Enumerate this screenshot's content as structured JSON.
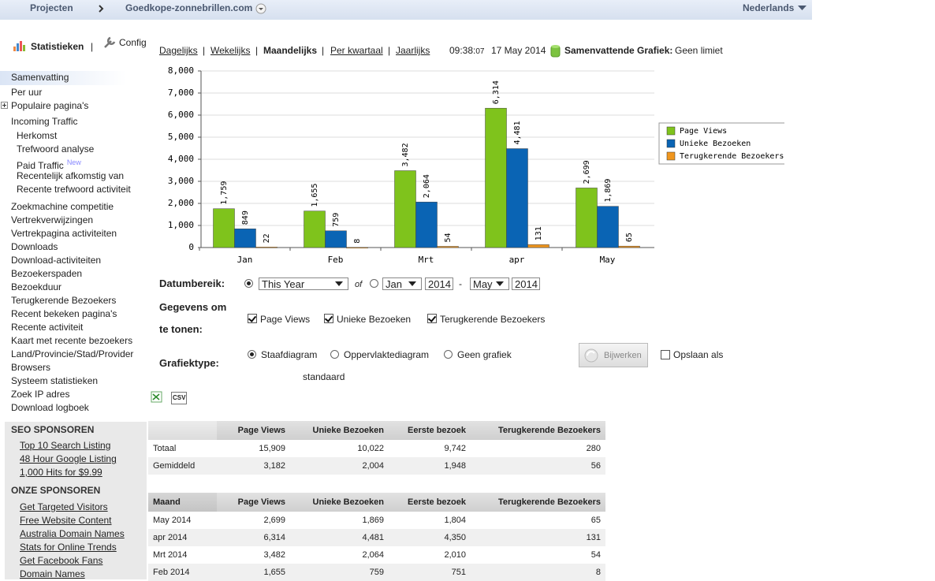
{
  "topbar": {
    "projects": "Projecten",
    "domain": "Goedkope-zonnebrillen.com",
    "language": "Nederlands"
  },
  "sidebar": {
    "title": "Statistieken",
    "separator": "|",
    "config": "Config",
    "nav": [
      "Samenvatting",
      "Per uur",
      "Populaire pagina's",
      "Incoming Traffic",
      "Herkomst",
      "Trefwoord analyse",
      "Paid Traffic",
      "Recentelijk afkomstig van",
      "Recente trefwoord activiteit",
      "Zoekmachine competitie",
      "Vertrekverwijzingen",
      "Vertrekpagina activiteiten",
      "Downloads",
      "Download-activiteiten",
      "Bezoekerspaden",
      "Bezoekduur",
      "Terugkerende Bezoekers",
      "Recent bekeken pagina's",
      "Recente activiteit",
      "Kaart met recente bezoekers",
      "Land/Provincie/Stad/Provider",
      "Browsers",
      "Systeem statistieken",
      "Zoek IP adres",
      "Download logboek"
    ],
    "new_badge": "New",
    "seo_title": "SEO SPONSOREN",
    "seo_links": [
      "Top 10 Search Listing",
      "48 Hour Google Listing",
      "1,000 Hits for $9.99"
    ],
    "our_title": "ONZE SPONSOREN",
    "our_links": [
      "Get Targeted Visitors",
      "Free Website Content",
      "Australia Domain Names",
      "Stats for Online Trends",
      "Get Facebook Fans",
      "Domain Names"
    ]
  },
  "periods": {
    "tabs": [
      "Dagelijks",
      "Wekelijks",
      "Maandelijks",
      "Per kwartaal",
      "Jaarlijks"
    ],
    "separator": "|",
    "time": "09:38:",
    "seconds": "07",
    "date": "17 May 2014",
    "summary_label": "Samenvattende Grafiek:",
    "summary_value": "Geen limiet"
  },
  "chart_data": {
    "type": "bar",
    "categories": [
      "Jan",
      "Feb",
      "Mrt",
      "apr",
      "May"
    ],
    "series": [
      {
        "name": "Page Views",
        "color": "#7fc31c",
        "values": [
          1759,
          1655,
          3482,
          6314,
          2699
        ],
        "value_labels": [
          "1,759",
          "1,655",
          "3,482",
          "6,314",
          "2,699"
        ]
      },
      {
        "name": "Unieke Bezoeken",
        "color": "#0a64b4",
        "values": [
          849,
          759,
          2064,
          4481,
          1869
        ],
        "value_labels": [
          "849",
          "759",
          "2,064",
          "4,481",
          "1,869"
        ]
      },
      {
        "name": "Terugkerende Bezoekers",
        "color": "#f0961e",
        "values": [
          22,
          8,
          54,
          131,
          65
        ],
        "value_labels": [
          "22",
          "8",
          "54",
          "131",
          "65"
        ]
      }
    ],
    "ylim": [
      0,
      8000
    ],
    "yticks": [
      0,
      {
        "value": 1000,
        "label": "1,000"
      },
      {
        "value": 2000,
        "label": "2,000"
      },
      {
        "value": 3000,
        "label": "3,000"
      },
      {
        "value": 4000,
        "label": "4,000"
      },
      {
        "value": 5000,
        "label": "5,000"
      },
      {
        "value": 6000,
        "label": "6,000"
      },
      {
        "value": 7000,
        "label": "7,000"
      },
      {
        "value": 8000,
        "label": "8,000"
      }
    ],
    "grid": true,
    "legend": "right"
  },
  "form": {
    "range_label": "Datumbereik:",
    "range_select": "This Year",
    "of": "of",
    "from_month": "Jan",
    "from_year": "2014",
    "dash": "-",
    "to_month": "May",
    "to_year": "2014",
    "data_label": "Gegevens om te tonen:",
    "data_options": [
      "Page Views",
      "Unieke Bezoeken",
      "Terugkerende Bezoekers"
    ],
    "type_label": "Grafiektype:",
    "type_options": [
      "Staafdiagram",
      "Oppervlaktediagram",
      "Geen grafiek"
    ],
    "update_button": "Bijwerken",
    "save_default": "Opslaan als",
    "save_default_2": "standaard",
    "csv": "CSV"
  },
  "summary_table": {
    "headers": [
      "Page Views",
      "Unieke Bezoeken",
      "Eerste bezoek",
      "Terugkerende Bezoekers"
    ],
    "rows": [
      [
        "Totaal",
        "15,909",
        "10,022",
        "9,742",
        "280"
      ],
      [
        "Gemiddeld",
        "3,182",
        "2,004",
        "1,948",
        "56"
      ]
    ]
  },
  "monthly_table": {
    "headers": [
      "Maand",
      "Page Views",
      "Unieke Bezoeken",
      "Eerste bezoek",
      "Terugkerende Bezoekers"
    ],
    "rows": [
      [
        "May 2014",
        "2,699",
        "1,869",
        "1,804",
        "65"
      ],
      [
        "apr 2014",
        "6,314",
        "4,481",
        "4,350",
        "131"
      ],
      [
        "Mrt 2014",
        "3,482",
        "2,064",
        "2,010",
        "54"
      ],
      [
        "Feb 2014",
        "1,655",
        "759",
        "751",
        "8"
      ]
    ]
  }
}
